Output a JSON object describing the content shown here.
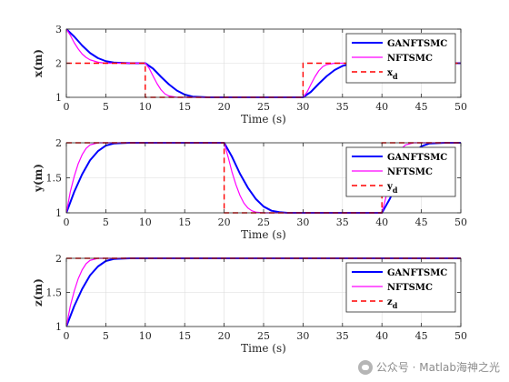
{
  "chart_data": [
    {
      "type": "line",
      "ylabel": "x(m)",
      "xlabel": "Time (s)",
      "xlim": [
        0,
        50
      ],
      "ylim": [
        1,
        3
      ],
      "xticks": [
        0,
        5,
        10,
        15,
        20,
        25,
        30,
        35,
        40,
        45,
        50
      ],
      "yticks": [
        1,
        2,
        3
      ],
      "grid": true,
      "legend_position": "top-right",
      "series": [
        {
          "name": "GANFTSMC",
          "color": "#0000ff",
          "style": "solid",
          "x": [
            0,
            1,
            2,
            3,
            4,
            5,
            6,
            8,
            10,
            11,
            12,
            13,
            14,
            15,
            16,
            18,
            20,
            25,
            30,
            31,
            32,
            33,
            34,
            35,
            36,
            38,
            40,
            45,
            50
          ],
          "y": [
            3,
            2.78,
            2.52,
            2.3,
            2.15,
            2.06,
            2.02,
            2.0,
            2.0,
            1.84,
            1.6,
            1.38,
            1.2,
            1.08,
            1.02,
            1.0,
            1.0,
            1.0,
            1.0,
            1.16,
            1.4,
            1.62,
            1.8,
            1.92,
            1.98,
            2.0,
            2.0,
            2.0,
            2.0
          ]
        },
        {
          "name": "NFTSMC",
          "color": "#ff00ff",
          "style": "solid",
          "x": [
            0,
            0.5,
            1,
            1.5,
            2,
            2.5,
            3,
            4,
            5,
            6,
            8,
            10,
            10.5,
            11,
            11.5,
            12,
            12.5,
            13,
            14,
            15,
            20,
            25,
            30,
            30.5,
            31,
            31.5,
            32,
            32.5,
            33,
            34,
            35,
            40,
            45,
            50
          ],
          "y": [
            3,
            2.82,
            2.6,
            2.42,
            2.27,
            2.17,
            2.1,
            2.03,
            2.0,
            2.0,
            2.0,
            2.0,
            1.85,
            1.62,
            1.4,
            1.22,
            1.1,
            1.04,
            1.0,
            1.0,
            1.0,
            1.0,
            1.0,
            1.15,
            1.38,
            1.6,
            1.78,
            1.9,
            1.96,
            2.0,
            2.0,
            2.0,
            2.0,
            2.0
          ]
        },
        {
          "name": "x",
          "name_subscript": "d",
          "color": "#ff0000",
          "style": "dashed",
          "x": [
            0,
            10,
            10,
            30,
            30,
            50
          ],
          "y": [
            2,
            2,
            1,
            1,
            2,
            2
          ]
        }
      ]
    },
    {
      "type": "line",
      "ylabel": "y(m)",
      "xlabel": "Time (s)",
      "xlim": [
        0,
        50
      ],
      "ylim": [
        1,
        2
      ],
      "xticks": [
        0,
        5,
        10,
        15,
        20,
        25,
        30,
        35,
        40,
        45,
        50
      ],
      "yticks": [
        1,
        1.5,
        2
      ],
      "grid": true,
      "legend_position": "top-right",
      "series": [
        {
          "name": "GANFTSMC",
          "color": "#0000ff",
          "style": "solid",
          "x": [
            0,
            1,
            2,
            3,
            4,
            5,
            6,
            8,
            10,
            15,
            20,
            21,
            22,
            23,
            24,
            25,
            26,
            27,
            28,
            30,
            35,
            40,
            41,
            42,
            43,
            44,
            45,
            46,
            48,
            50
          ],
          "y": [
            1,
            1.3,
            1.55,
            1.75,
            1.88,
            1.96,
            1.99,
            2.0,
            2.0,
            2.0,
            2.0,
            1.8,
            1.56,
            1.36,
            1.2,
            1.09,
            1.03,
            1.01,
            1.0,
            1.0,
            1.0,
            1.0,
            1.2,
            1.45,
            1.68,
            1.85,
            1.95,
            1.99,
            2.0,
            2.0
          ]
        },
        {
          "name": "NFTSMC",
          "color": "#ff00ff",
          "style": "solid",
          "x": [
            0,
            0.5,
            1,
            1.5,
            2,
            2.5,
            3,
            4,
            5,
            10,
            15,
            20,
            20.5,
            21,
            21.5,
            22,
            22.5,
            23,
            23.5,
            24,
            25,
            30,
            35,
            40,
            40.5,
            41,
            41.5,
            42,
            42.5,
            43,
            44,
            45,
            50
          ],
          "y": [
            1,
            1.3,
            1.52,
            1.7,
            1.83,
            1.92,
            1.97,
            2.0,
            2.0,
            2.0,
            2.0,
            2.0,
            1.8,
            1.58,
            1.4,
            1.25,
            1.14,
            1.07,
            1.03,
            1.01,
            1.0,
            1.0,
            1.0,
            1.0,
            1.22,
            1.47,
            1.68,
            1.83,
            1.92,
            1.97,
            2.0,
            2.0,
            2.0
          ]
        },
        {
          "name": "y",
          "name_subscript": "d",
          "color": "#ff0000",
          "style": "dashed",
          "x": [
            0,
            20,
            20,
            40,
            40,
            50
          ],
          "y": [
            2,
            2,
            1,
            1,
            2,
            2
          ]
        }
      ]
    },
    {
      "type": "line",
      "ylabel": "z(m)",
      "xlabel": "Time (s)",
      "xlim": [
        0,
        50
      ],
      "ylim": [
        1,
        2
      ],
      "xticks": [
        0,
        5,
        10,
        15,
        20,
        25,
        30,
        35,
        40,
        45,
        50
      ],
      "yticks": [
        1,
        1.5,
        2
      ],
      "grid": true,
      "legend_position": "top-right",
      "series": [
        {
          "name": "GANFTSMC",
          "color": "#0000ff",
          "style": "solid",
          "x": [
            0,
            1,
            2,
            3,
            4,
            5,
            6,
            8,
            10,
            20,
            30,
            40,
            50
          ],
          "y": [
            1,
            1.3,
            1.55,
            1.75,
            1.88,
            1.96,
            1.99,
            2.0,
            2.0,
            2.0,
            2.0,
            2.0,
            2.0
          ]
        },
        {
          "name": "NFTSMC",
          "color": "#ff00ff",
          "style": "solid",
          "x": [
            0,
            0.5,
            1,
            1.5,
            2,
            2.5,
            3,
            4,
            5,
            10,
            20,
            30,
            40,
            50
          ],
          "y": [
            1,
            1.3,
            1.52,
            1.7,
            1.83,
            1.92,
            1.97,
            2.0,
            2.0,
            2.0,
            2.0,
            2.0,
            2.0,
            2.0
          ]
        },
        {
          "name": "z",
          "name_subscript": "d",
          "color": "#ff0000",
          "style": "dashed",
          "x": [
            0,
            50
          ],
          "y": [
            2,
            2
          ]
        }
      ]
    }
  ],
  "watermark": {
    "text": "公众号 · Matlab海神之光",
    "icon": "wechat-icon"
  }
}
